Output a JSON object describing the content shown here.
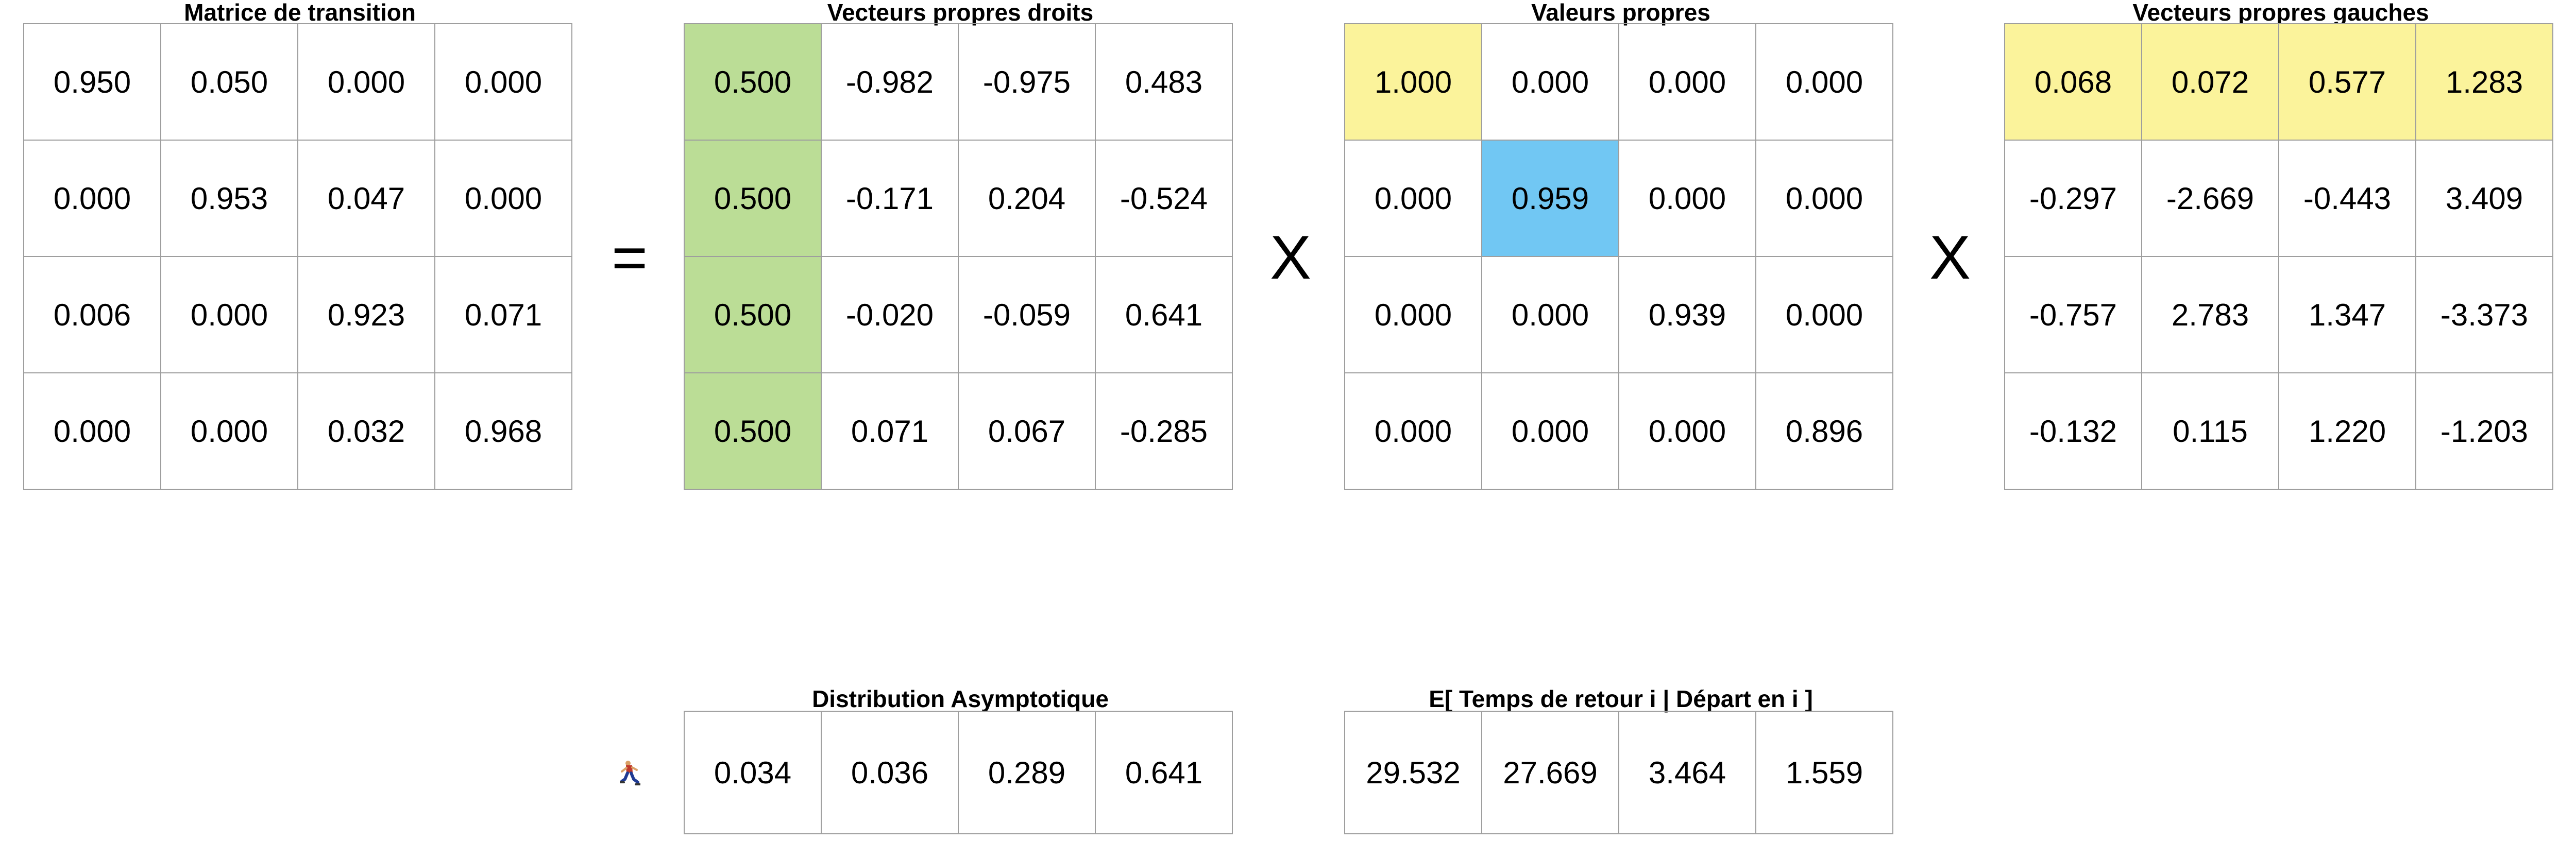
{
  "transition": {
    "title": "Matrice de transition",
    "rows": [
      [
        "0.950",
        "0.050",
        "0.000",
        "0.000"
      ],
      [
        "0.000",
        "0.953",
        "0.047",
        "0.000"
      ],
      [
        "0.006",
        "0.000",
        "0.923",
        "0.071"
      ],
      [
        "0.000",
        "0.000",
        "0.032",
        "0.968"
      ]
    ]
  },
  "right_eigvecs": {
    "title": "Vecteurs propres droits",
    "rows": [
      [
        "0.500",
        "-0.982",
        "-0.975",
        "0.483"
      ],
      [
        "0.500",
        "-0.171",
        "0.204",
        "-0.524"
      ],
      [
        "0.500",
        "-0.020",
        "-0.059",
        "0.641"
      ],
      [
        "0.500",
        "0.071",
        "0.067",
        "-0.285"
      ]
    ]
  },
  "eigvals": {
    "title": "Valeurs propres",
    "rows": [
      [
        "1.000",
        "0.000",
        "0.000",
        "0.000"
      ],
      [
        "0.000",
        "0.959",
        "0.000",
        "0.000"
      ],
      [
        "0.000",
        "0.000",
        "0.939",
        "0.000"
      ],
      [
        "0.000",
        "0.000",
        "0.000",
        "0.896"
      ]
    ]
  },
  "left_eigvecs": {
    "title": "Vecteurs propres gauches",
    "rows": [
      [
        "0.068",
        "0.072",
        "0.577",
        "1.283"
      ],
      [
        "-0.297",
        "-2.669",
        "-0.443",
        "3.409"
      ],
      [
        "-0.757",
        "2.783",
        "1.347",
        "-3.373"
      ],
      [
        "-0.132",
        "0.115",
        "1.220",
        "-1.203"
      ]
    ]
  },
  "operators": {
    "equals": "=",
    "times_1": "X",
    "times_2": "X"
  },
  "asymptotic": {
    "title": "Distribution Asymptotique",
    "icon": "runner-icon",
    "row": [
      "0.034",
      "0.036",
      "0.289",
      "0.641"
    ]
  },
  "return_time": {
    "title": "E[ Temps de retour i | Départ en i ]",
    "row": [
      "29.532",
      "27.669",
      "3.464",
      "1.559"
    ]
  },
  "colors": {
    "green_highlight": "#bbdd96",
    "yellow_highlight": "#fbf39b",
    "blue_highlight": "#71c7f3",
    "grid_border": "#9e9e9e"
  }
}
